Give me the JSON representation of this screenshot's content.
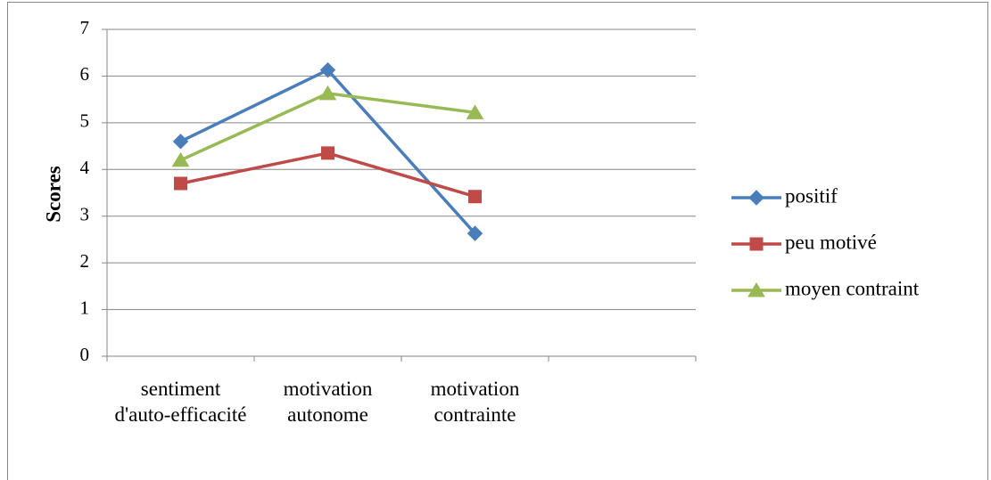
{
  "chart_data": {
    "type": "line",
    "y_label": "Scores",
    "categories": [
      "sentiment d'auto-efficacité",
      "motivation autonome",
      "motivation contrainte",
      null
    ],
    "series": [
      {
        "name": "positif",
        "color": "#4a7ebb",
        "marker": "diamond",
        "values": [
          4.6,
          6.13,
          2.63,
          null
        ]
      },
      {
        "name": "peu motivé",
        "color": "#be4b48",
        "marker": "square",
        "values": [
          3.7,
          4.35,
          3.42,
          null
        ]
      },
      {
        "name": "moyen contraint",
        "color": "#98b954",
        "marker": "triangle",
        "values": [
          4.2,
          5.63,
          5.22,
          null
        ]
      }
    ],
    "ylim": [
      0,
      7
    ],
    "yticks": [
      0,
      1,
      2,
      3,
      4,
      5,
      6,
      7
    ],
    "grid": true,
    "legend": "right"
  }
}
